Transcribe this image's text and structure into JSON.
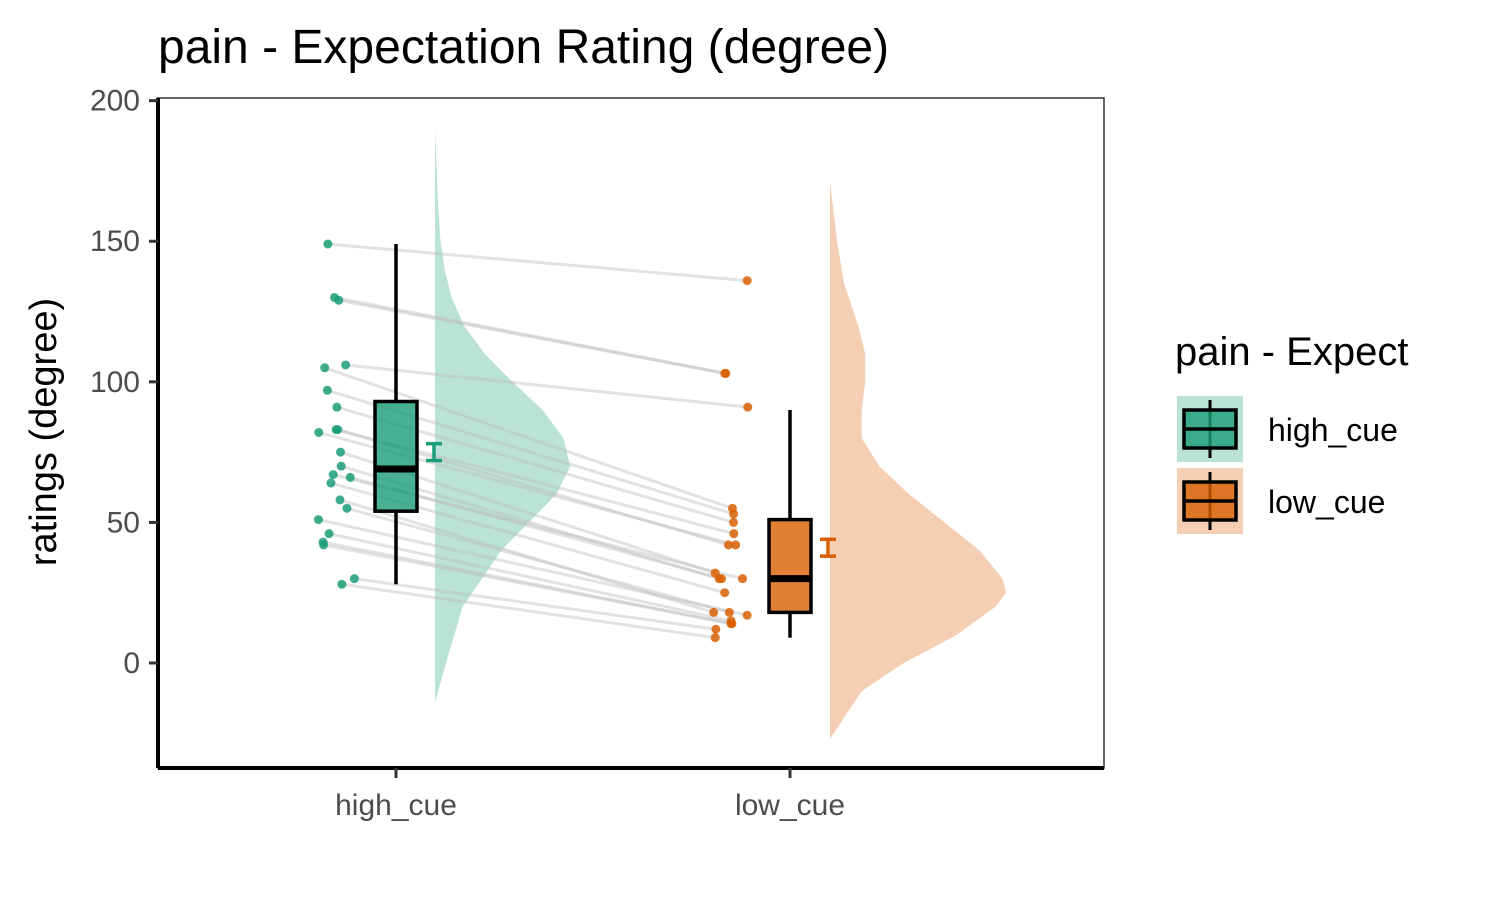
{
  "chart_data": {
    "type": "raincloud",
    "title": "pain  - Expectation Rating (degree)",
    "xlabel": "",
    "ylabel": "ratings (degree)",
    "ylim": [
      -37,
      200
    ],
    "yticks": [
      0,
      50,
      100,
      150,
      200
    ],
    "categories": [
      "high_cue",
      "low_cue"
    ],
    "grid": false,
    "legend": {
      "title": "pain  - Expect",
      "position": "right",
      "entries": [
        "high_cue",
        "low_cue"
      ]
    },
    "colors": {
      "high_cue": "#1b9e77",
      "low_cue": "#d95f02",
      "paired_line": "#bfbfbf"
    },
    "series": [
      {
        "name": "high_cue",
        "box": {
          "min": 28,
          "q1": 54,
          "median": 69,
          "q3": 93,
          "max": 149
        },
        "mean": 75,
        "se": [
          72,
          78
        ],
        "points": [
          149,
          130,
          129,
          106,
          105,
          97,
          91,
          83,
          83,
          82,
          75,
          70,
          67,
          66,
          64,
          58,
          55,
          51,
          46,
          43,
          42,
          30,
          28
        ],
        "density": {
          "y": [
            -14,
            0,
            20,
            40,
            50,
            60,
            70,
            80,
            90,
            100,
            110,
            120,
            130,
            140,
            150,
            165,
            190
          ],
          "w": [
            0,
            0.08,
            0.2,
            0.48,
            0.68,
            0.88,
            0.98,
            0.93,
            0.78,
            0.56,
            0.36,
            0.21,
            0.12,
            0.07,
            0.04,
            0.02,
            0
          ]
        }
      },
      {
        "name": "low_cue",
        "box": {
          "min": 9,
          "q1": 18,
          "median": 30,
          "q3": 51,
          "max": 90
        },
        "mean": 41,
        "se": [
          38,
          44
        ],
        "points": [
          136,
          103,
          103,
          91,
          55,
          53,
          50,
          46,
          42,
          42,
          32,
          30,
          30,
          30,
          25,
          18,
          18,
          17,
          15,
          14,
          14,
          12,
          9
        ],
        "density": {
          "y": [
            -27,
            -10,
            0,
            10,
            20,
            25,
            30,
            40,
            50,
            60,
            70,
            80,
            90,
            100,
            110,
            120,
            135,
            150,
            171
          ],
          "w": [
            0,
            0.18,
            0.42,
            0.72,
            0.94,
            1.0,
            0.98,
            0.85,
            0.65,
            0.45,
            0.28,
            0.18,
            0.18,
            0.2,
            0.2,
            0.16,
            0.08,
            0.04,
            0
          ]
        }
      }
    ],
    "pairs": [
      [
        149,
        136
      ],
      [
        130,
        103
      ],
      [
        129,
        103
      ],
      [
        106,
        91
      ],
      [
        105,
        55
      ],
      [
        97,
        53
      ],
      [
        91,
        50
      ],
      [
        83,
        46
      ],
      [
        83,
        42
      ],
      [
        82,
        42
      ],
      [
        75,
        32
      ],
      [
        70,
        30
      ],
      [
        67,
        30
      ],
      [
        66,
        30
      ],
      [
        64,
        25
      ],
      [
        58,
        18
      ],
      [
        55,
        18
      ],
      [
        51,
        17
      ],
      [
        46,
        15
      ],
      [
        43,
        14
      ],
      [
        42,
        14
      ],
      [
        30,
        12
      ],
      [
        28,
        9
      ]
    ]
  }
}
